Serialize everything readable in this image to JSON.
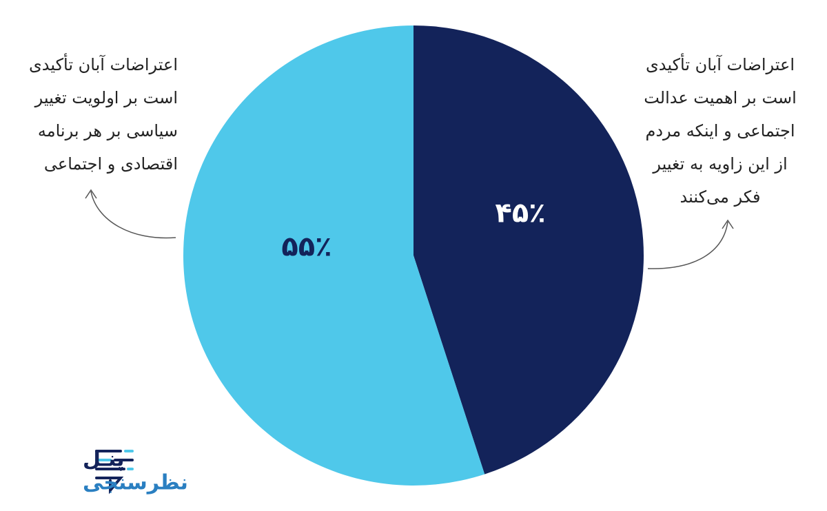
{
  "chart_data": {
    "type": "pie",
    "values": [
      45,
      55
    ],
    "value_labels": [
      "۴۵٪",
      "۵۵٪"
    ],
    "colors": [
      "#13235a",
      "#4fc8ea"
    ],
    "label_colors": [
      "#ffffff",
      "#13235a"
    ],
    "annotations": [
      [
        "اعتراضات آبان تأکیدی",
        "است بر اهمیت عدالت",
        "اجتماعی و اینکه مردم",
        "از این زاویه به تغییر",
        "فکر می‌کنند"
      ],
      [
        "اعتراضات آبان تأکیدی",
        "است بر اولویت تغییر",
        "سیاسی بر هر برنامه",
        "اقتصادی و اجتماعی"
      ]
    ]
  },
  "logo": {
    "line1": "پنـل",
    "line2": "نظرسنجی"
  }
}
